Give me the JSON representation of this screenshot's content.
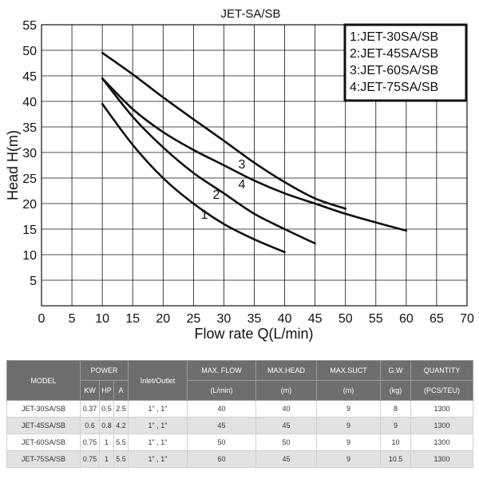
{
  "chart_data": {
    "type": "line",
    "title": "JET-SA/SB",
    "xlabel": "Flow rate Q(L/min)",
    "ylabel": "Head H(m)",
    "xlim": [
      0,
      70
    ],
    "ylim": [
      0,
      55
    ],
    "x_ticks": [
      0,
      5,
      10,
      15,
      20,
      25,
      30,
      35,
      40,
      45,
      50,
      55,
      60,
      65,
      70
    ],
    "y_ticks": [
      5,
      10,
      15,
      20,
      25,
      30,
      35,
      40,
      45,
      50,
      55
    ],
    "grid": true,
    "legend": {
      "placement": "top-right",
      "entries": [
        "1:JET-30SA/SB",
        "2:JET-45SA/SB",
        "3:JET-60SA/SB",
        "4:JET-75SA/SB"
      ]
    },
    "series": [
      {
        "label": "1",
        "x": [
          10,
          15,
          20,
          25,
          30,
          35,
          40
        ],
        "y": [
          39.5,
          31.5,
          25,
          20,
          16,
          13,
          10.5
        ]
      },
      {
        "label": "2",
        "x": [
          10,
          15,
          20,
          25,
          30,
          35,
          40,
          45
        ],
        "y": [
          44.5,
          37,
          31,
          26,
          22,
          18,
          15,
          12.2
        ]
      },
      {
        "label": "3",
        "x": [
          10,
          15,
          20,
          25,
          30,
          35,
          40,
          45,
          50
        ],
        "y": [
          49.5,
          45.3,
          40.8,
          36.5,
          32.3,
          28,
          24.2,
          21,
          19
        ]
      },
      {
        "label": "4",
        "x": [
          10,
          15,
          20,
          25,
          30,
          35,
          40,
          45,
          50,
          55,
          60
        ],
        "y": [
          44.5,
          38.5,
          34,
          30.5,
          27.5,
          24.5,
          22,
          20,
          18,
          16.3,
          14.7
        ]
      }
    ],
    "line_color": "#111111"
  },
  "spec_table": {
    "headers": {
      "model": "MODEL",
      "power": "POWER",
      "kw": "KW",
      "hp": "HP",
      "a": "A",
      "inlet_outlet": "Inlet/Outlet",
      "max_flow": "MAX. FLOW",
      "max_flow_unit": "(L/min)",
      "max_head": "MAX.HEAD",
      "max_head_unit": "(m)",
      "max_suct": "MAX.SUCT",
      "max_suct_unit": "(m)",
      "gw": "G.W",
      "gw_unit": "(kg)",
      "quantity": "QUANTITY",
      "quantity_unit": "(PCS/TEU)"
    },
    "rows": [
      {
        "model": "JET-30SA/SB",
        "kw": "0.37",
        "hp": "0.5",
        "a": "2.5",
        "inlet_outlet": "1\" , 1\"",
        "max_flow": "40",
        "max_head": "40",
        "max_suct": "9",
        "gw": "8",
        "quantity": "1300"
      },
      {
        "model": "JET-45SA/SB",
        "kw": "0.6",
        "hp": "0.8",
        "a": "4.2",
        "inlet_outlet": "1\" , 1\"",
        "max_flow": "45",
        "max_head": "45",
        "max_suct": "9",
        "gw": "9",
        "quantity": "1300"
      },
      {
        "model": "JET-60SA/SB",
        "kw": "0.75",
        "hp": "1",
        "a": "5.5",
        "inlet_outlet": "1\" , 1\"",
        "max_flow": "50",
        "max_head": "50",
        "max_suct": "9",
        "gw": "10",
        "quantity": "1300"
      },
      {
        "model": "JET-75SA/SB",
        "kw": "0.75",
        "hp": "1",
        "a": "5.5",
        "inlet_outlet": "1\" , 1\"",
        "max_flow": "60",
        "max_head": "45",
        "max_suct": "9",
        "gw": "10.5",
        "quantity": "1300"
      }
    ],
    "header_bg": "#6e6e6e",
    "alt_row_bg": "#e2e2e2"
  }
}
